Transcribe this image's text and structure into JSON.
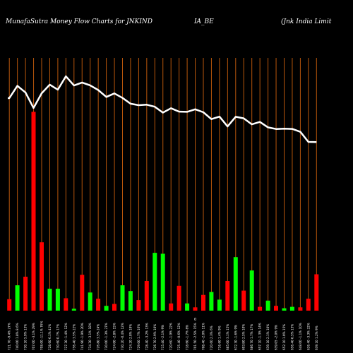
{
  "header": {
    "title_left": "MunafaSutra  Money Flow  Charts for JNKIND",
    "title_mid": "IA_BE",
    "title_right": "(Jnk India  Limit"
  },
  "chart_data": {
    "type": "bar",
    "title": "MunafaSutra  Money Flow  Charts for JNKIND",
    "x_marker": "0",
    "colors": {
      "up": "#00ff00",
      "down": "#ff0000",
      "line": "#ffffff",
      "grid": "#b8560b",
      "background": "#000000"
    },
    "categories": [
      "721.70 -9.4% 27%",
      "740.00 1.8% 8.6%",
      "730.10 5.9% 13%",
      "707.00 -3.1% 29%",
      "708.00 -11.1% 76%",
      "728.60 6.1% 41%",
      "730.60 0.7% 17%",
      "727.30 -1.4% 12%",
      "756.40 3.5% 22%",
      "741.90 -1.9% 20%",
      "734.30 -3.1% 18%",
      "726.80 3.5% 24%",
      "730.00 -1.3% 27%",
      "724.00 -2.8% 15%",
      "730.20 -0.4% 12%",
      "724.20 2.0% 19%",
      "729.00 1.7% 16%",
      "728.40 -3.2% 13%",
      "726.70 2.9% 10%",
      "715.40 -2.1% 9%",
      "720.60 -1.9% 22%",
      "725.40 -0.6% 12%",
      "718.60 -1.7% 8%",
      "701.50 -2.5% 15%",
      "708.40 -2.0% 11%",
      "720.60 2.3% 6%",
      "716.60 1.4% 9%",
      "685.00 3.1% 15%",
      "672.30 -1.6% 9%",
      "693.80 2.5% 10%",
      "686.70 1.7% 17%",
      "657.10 -1.3% 14%",
      "639.10 2.1% 10%",
      "639.05 -2.0% 9%",
      "652.10 1.0% 15%",
      "656.40 0.5% 13%",
      "648.00 -1.1% 10%",
      "626.40 -3.3% 22%",
      "639.10 1.2% 9%"
    ],
    "direction": [
      "down",
      "up",
      "down",
      "down",
      "down",
      "up",
      "up",
      "down",
      "up",
      "down",
      "up",
      "down",
      "up",
      "down",
      "up",
      "up",
      "down",
      "down",
      "up",
      "up",
      "down",
      "down",
      "up",
      "down",
      "down",
      "up",
      "up",
      "down",
      "up",
      "down",
      "up",
      "down",
      "up",
      "down",
      "up",
      "up",
      "down",
      "down",
      "down"
    ],
    "series": [
      {
        "values": [
          2.4,
          5.3,
          7.1,
          41.6,
          14.3,
          4.6,
          4.6,
          2.6,
          0.4,
          7.5,
          3.8,
          2.5,
          1.0,
          1.4,
          5.3,
          4.1,
          2.2,
          6.2,
          12.1,
          11.9,
          1.5,
          5.2,
          1.5,
          0.7,
          3.3,
          3.9,
          2.3,
          6.2,
          11.2,
          4.2,
          8.4,
          0.8,
          2.1,
          1.0,
          0.5,
          0.8,
          0.7,
          2.5,
          7.6
        ]
      },
      {
        "values": [
          721.7,
          740.0,
          730.1,
          707.0,
          729.0,
          741.8,
          734.3,
          754.2,
          740.5,
          744.9,
          740.7,
          733.8,
          723.5,
          728.7,
          722.0,
          713.4,
          711.2,
          711.9,
          708.8,
          700.1,
          706.6,
          701.6,
          701.3,
          705.0,
          700.6,
          690.4,
          694.1,
          679.5,
          693.9,
          691.6,
          682.6,
          686.2,
          678.1,
          675.7,
          676.2,
          675.8,
          671.5,
          656.4,
          656.2
        ]
      }
    ],
    "grid": true
  }
}
